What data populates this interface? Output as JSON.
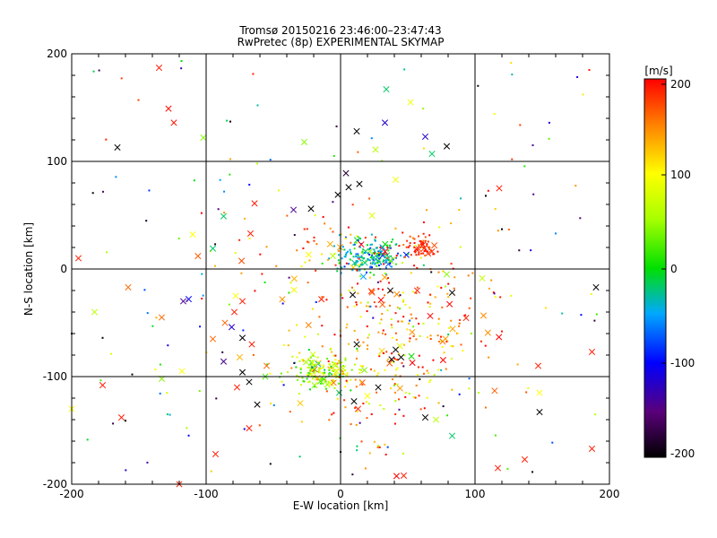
{
  "chart_data": {
    "type": "scatter",
    "title": "Tromsø 20150216 23:46:00–23:47:43",
    "subtitle": "RwPretec (8p) EXPERIMENTAL SKYMAP",
    "xlabel": "E-W location [km]",
    "ylabel": "N-S location [km]",
    "xlim": [
      -200,
      200
    ],
    "ylim": [
      -200,
      200
    ],
    "xticks": [
      "-200",
      "-100",
      "0",
      "100",
      "200"
    ],
    "yticks": [
      "-200",
      "-100",
      "0",
      "100",
      "200"
    ],
    "grid": true,
    "colorbar": {
      "label": "[m/s]",
      "range": [
        -200,
        200
      ],
      "ticks": [
        "200",
        "100",
        "0",
        "-100",
        "-200"
      ]
    },
    "markers": {
      "small": "dot",
      "large": "x"
    },
    "clusters": [
      {
        "x_center": 22,
        "y_center": 12,
        "spread_x": 12,
        "spread_y": 8,
        "count": 180,
        "v_mean": -40,
        "v_sd": 35
      },
      {
        "x_center": 60,
        "y_center": 22,
        "spread_x": 5,
        "spread_y": 6,
        "count": 55,
        "v_mean": 180,
        "v_sd": 15
      },
      {
        "x_center": -15,
        "y_center": -95,
        "spread_x": 12,
        "spread_y": 8,
        "count": 160,
        "v_mean": 60,
        "v_sd": 40
      },
      {
        "x_center": 40,
        "y_center": -70,
        "spread_x": 35,
        "spread_y": 45,
        "count": 320,
        "v_mean": 140,
        "v_sd": 60
      },
      {
        "x_center": 0,
        "y_center": 20,
        "spread_x": 40,
        "spread_y": 20,
        "count": 70,
        "v_mean": 150,
        "v_sd": 50
      }
    ],
    "points": [
      {
        "x": -135,
        "y": 187,
        "v": 190,
        "m": "x"
      },
      {
        "x": -128,
        "y": 149,
        "v": 195,
        "m": "x"
      },
      {
        "x": -124,
        "y": 136,
        "v": 190,
        "m": "x"
      },
      {
        "x": -102,
        "y": 122,
        "v": 40,
        "m": "x"
      },
      {
        "x": -166,
        "y": 113,
        "v": -200,
        "m": "x"
      },
      {
        "x": -27,
        "y": 118,
        "v": 40,
        "m": "x"
      },
      {
        "x": 34,
        "y": 167,
        "v": -20,
        "m": "x"
      },
      {
        "x": 52,
        "y": 155,
        "v": 90,
        "m": "x"
      },
      {
        "x": 33,
        "y": 136,
        "v": -120,
        "m": "x"
      },
      {
        "x": 12,
        "y": 128,
        "v": -200,
        "m": "x"
      },
      {
        "x": 63,
        "y": 123,
        "v": -120,
        "m": "x"
      },
      {
        "x": 79,
        "y": 114,
        "v": -200,
        "m": "x"
      },
      {
        "x": 68,
        "y": 107,
        "v": -20,
        "m": "x"
      },
      {
        "x": 26,
        "y": 111,
        "v": 60,
        "m": "x"
      },
      {
        "x": 185,
        "y": 185,
        "v": 190,
        "m": "dot"
      },
      {
        "x": 143,
        "y": 115,
        "v": -140,
        "m": "dot"
      },
      {
        "x": -195,
        "y": 10,
        "v": 190,
        "m": "x"
      },
      {
        "x": 4,
        "y": 89,
        "v": -180,
        "m": "x"
      },
      {
        "x": 41,
        "y": 83,
        "v": 90,
        "m": "x"
      },
      {
        "x": 14,
        "y": 79,
        "v": -200,
        "m": "x"
      },
      {
        "x": 6,
        "y": 76,
        "v": -200,
        "m": "x"
      },
      {
        "x": -2,
        "y": 69,
        "v": -200,
        "m": "x"
      },
      {
        "x": 118,
        "y": 75,
        "v": 190,
        "m": "x"
      },
      {
        "x": -64,
        "y": 61,
        "v": 190,
        "m": "x"
      },
      {
        "x": -87,
        "y": 49,
        "v": -20,
        "m": "x"
      },
      {
        "x": -35,
        "y": 55,
        "v": -140,
        "m": "x"
      },
      {
        "x": -22,
        "y": 56,
        "v": -200,
        "m": "x"
      },
      {
        "x": -67,
        "y": 33,
        "v": 190,
        "m": "x"
      },
      {
        "x": -95,
        "y": 19,
        "v": -20,
        "m": "x"
      },
      {
        "x": -110,
        "y": 32,
        "v": 100,
        "m": "x"
      },
      {
        "x": 190,
        "y": -17,
        "v": -200,
        "m": "x"
      },
      {
        "x": 187,
        "y": -77,
        "v": 190,
        "m": "x"
      },
      {
        "x": 187,
        "y": -167,
        "v": 190,
        "m": "x"
      },
      {
        "x": 147,
        "y": -90,
        "v": 190,
        "m": "x"
      },
      {
        "x": 148,
        "y": -115,
        "v": 100,
        "m": "x"
      },
      {
        "x": 148,
        "y": -133,
        "v": -200,
        "m": "x"
      },
      {
        "x": 137,
        "y": -177,
        "v": 190,
        "m": "x"
      },
      {
        "x": 117,
        "y": -185,
        "v": 190,
        "m": "x"
      },
      {
        "x": -158,
        "y": -17,
        "v": 160,
        "m": "x"
      },
      {
        "x": -183,
        "y": -40,
        "v": 60,
        "m": "x"
      },
      {
        "x": -133,
        "y": -45,
        "v": 160,
        "m": "x"
      },
      {
        "x": -113,
        "y": -28,
        "v": -100,
        "m": "x"
      },
      {
        "x": -117,
        "y": -30,
        "v": -140,
        "m": "x"
      },
      {
        "x": -78,
        "y": -25,
        "v": 100,
        "m": "x"
      },
      {
        "x": -79,
        "y": -40,
        "v": 190,
        "m": "x"
      },
      {
        "x": -73,
        "y": -30,
        "v": 190,
        "m": "x"
      },
      {
        "x": -95,
        "y": -65,
        "v": 160,
        "m": "x"
      },
      {
        "x": -86,
        "y": -50,
        "v": 160,
        "m": "x"
      },
      {
        "x": -81,
        "y": -54,
        "v": -120,
        "m": "x"
      },
      {
        "x": -73,
        "y": -64,
        "v": -200,
        "m": "x"
      },
      {
        "x": -66,
        "y": -70,
        "v": 190,
        "m": "x"
      },
      {
        "x": -87,
        "y": -86,
        "v": -140,
        "m": "x"
      },
      {
        "x": -75,
        "y": -82,
        "v": 130,
        "m": "x"
      },
      {
        "x": -55,
        "y": -90,
        "v": 160,
        "m": "x"
      },
      {
        "x": -73,
        "y": -96,
        "v": -200,
        "m": "x"
      },
      {
        "x": -68,
        "y": -105,
        "v": -200,
        "m": "x"
      },
      {
        "x": -56,
        "y": -100,
        "v": 20,
        "m": "x"
      },
      {
        "x": -77,
        "y": -110,
        "v": 190,
        "m": "x"
      },
      {
        "x": -62,
        "y": -126,
        "v": -200,
        "m": "x"
      },
      {
        "x": -68,
        "y": -148,
        "v": 190,
        "m": "x"
      },
      {
        "x": -93,
        "y": -172,
        "v": 190,
        "m": "x"
      },
      {
        "x": -133,
        "y": -102,
        "v": 40,
        "m": "x"
      },
      {
        "x": -118,
        "y": -95,
        "v": 100,
        "m": "x"
      },
      {
        "x": -177,
        "y": -108,
        "v": 190,
        "m": "x"
      },
      {
        "x": -163,
        "y": -138,
        "v": 190,
        "m": "x"
      },
      {
        "x": -200,
        "y": -130,
        "v": 100,
        "m": "x"
      },
      {
        "x": -120,
        "y": -200,
        "v": 190,
        "m": "x"
      },
      {
        "x": 9,
        "y": -24,
        "v": -200,
        "m": "x"
      },
      {
        "x": 37,
        "y": -20,
        "v": -200,
        "m": "x"
      },
      {
        "x": 57,
        "y": -20,
        "v": 190,
        "m": "x"
      },
      {
        "x": 83,
        "y": -22,
        "v": -200,
        "m": "x"
      },
      {
        "x": 79,
        "y": -5,
        "v": 40,
        "m": "x"
      },
      {
        "x": 41,
        "y": -75,
        "v": -200,
        "m": "x"
      },
      {
        "x": 45,
        "y": -82,
        "v": -200,
        "m": "x"
      },
      {
        "x": 38,
        "y": -84,
        "v": -200,
        "m": "x"
      },
      {
        "x": 12,
        "y": -70,
        "v": -200,
        "m": "x"
      },
      {
        "x": 28,
        "y": -110,
        "v": -200,
        "m": "x"
      },
      {
        "x": 10,
        "y": -123,
        "v": -200,
        "m": "x"
      },
      {
        "x": 13,
        "y": -130,
        "v": 190,
        "m": "x"
      },
      {
        "x": 63,
        "y": -138,
        "v": -200,
        "m": "x"
      },
      {
        "x": 71,
        "y": -140,
        "v": 60,
        "m": "x"
      },
      {
        "x": 83,
        "y": -155,
        "v": -20,
        "m": "x"
      },
      {
        "x": 47,
        "y": -192,
        "v": 190,
        "m": "x"
      },
      {
        "x": -1,
        "y": -115,
        "v": -20,
        "m": "x"
      },
      {
        "x": 20,
        "y": -118,
        "v": 100,
        "m": "x"
      },
      {
        "x": -200,
        "y": -60,
        "v": -200,
        "m": "dot"
      },
      {
        "x": -177,
        "y": -64,
        "v": -200,
        "m": "dot"
      },
      {
        "x": -155,
        "y": -98,
        "v": -200,
        "m": "dot"
      },
      {
        "x": -160,
        "y": -141,
        "v": -200,
        "m": "dot"
      },
      {
        "x": 0,
        "y": -170,
        "v": -200,
        "m": "dot"
      },
      {
        "x": 120,
        "y": -58,
        "v": 190,
        "m": "dot"
      },
      {
        "x": 120,
        "y": 37,
        "v": -200,
        "m": "dot"
      },
      {
        "x": 160,
        "y": 33,
        "v": -60,
        "m": "dot"
      },
      {
        "x": -82,
        "y": 137,
        "v": -200,
        "m": "dot"
      },
      {
        "x": -62,
        "y": 98,
        "v": 60,
        "m": "dot"
      },
      {
        "x": 108,
        "y": 68,
        "v": -200,
        "m": "dot"
      }
    ]
  }
}
